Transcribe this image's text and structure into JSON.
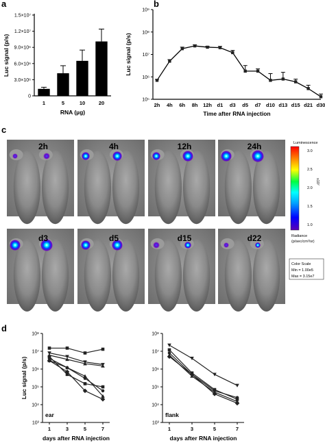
{
  "chart_data": [
    {
      "panel": "a",
      "type": "bar",
      "categories": [
        "1",
        "5",
        "10",
        "20"
      ],
      "values": [
        1300000,
        4200000,
        6500000,
        10100000
      ],
      "errors": [
        300000,
        1400000,
        2000000,
        2300000
      ],
      "ylabel": "Luc signal (p/s)",
      "xlabel": "RNA (µg)",
      "ylim": [
        0,
        15000000
      ],
      "yticks": [
        "0",
        "3.0×10⁶",
        "6.0×10⁶",
        "9.0×10⁶",
        "1.2×10⁷",
        "1.5×10⁷"
      ]
    },
    {
      "panel": "b",
      "type": "line",
      "yscale": "log",
      "categories": [
        "2h",
        "4h",
        "6h",
        "8h",
        "12h",
        "d1",
        "d3",
        "d5",
        "d7",
        "d10",
        "d13",
        "d15",
        "d21",
        "d30"
      ],
      "values": [
        700000,
        5000000,
        18000000,
        24000000,
        21000000,
        20000000,
        12000000,
        1800000,
        1800000,
        700000,
        800000,
        600000,
        300000,
        130000
      ],
      "errors_up": [
        0.04,
        0.07,
        0.07,
        0.05,
        0.04,
        0.06,
        0.1,
        0.25,
        0.1,
        0.3,
        0.3,
        0.12,
        0.15,
        0.12
      ],
      "ylabel": "Luc signal (p/s)",
      "xlabel": "Time after RNA injection",
      "ylim": [
        100000,
        1000000000
      ],
      "yticks": [
        "10⁵",
        "10⁶",
        "10⁷",
        "10⁸",
        "10⁹"
      ]
    },
    {
      "panel": "d-ear",
      "type": "line",
      "yscale": "log",
      "x": [
        1,
        3,
        5,
        7
      ],
      "series": [
        {
          "marker": "square",
          "values": [
            15000000,
            15000000,
            8000000,
            13000000
          ]
        },
        {
          "marker": "triangle-down",
          "values": [
            8000000,
            5000000,
            2500000,
            1800000
          ]
        },
        {
          "marker": "triangle-up",
          "values": [
            6000000,
            3500000,
            2000000,
            1500000
          ]
        },
        {
          "marker": "circle",
          "values": [
            4000000,
            1200000,
            300000,
            60000
          ]
        },
        {
          "marker": "triangle-up",
          "values": [
            3000000,
            1200000,
            400000,
            30000
          ]
        },
        {
          "marker": "diamond",
          "values": [
            3000000,
            700000,
            60000,
            20000
          ]
        },
        {
          "marker": "square",
          "values": [
            5000000,
            500000,
            150000,
            100000
          ]
        }
      ],
      "label": "ear",
      "ylabel": "Luc signal (p/s)",
      "xlabel": "days after RNA injection",
      "ylim": [
        1000,
        100000000
      ],
      "yticks": [
        "10³",
        "10⁴",
        "10⁵",
        "10⁶",
        "10⁷",
        "10⁸"
      ]
    },
    {
      "panel": "d-flank",
      "type": "line",
      "yscale": "log",
      "x": [
        1,
        3,
        5,
        7
      ],
      "series": [
        {
          "marker": "triangle-down",
          "values": [
            22000000,
            4000000,
            500000,
            120000
          ]
        },
        {
          "marker": "square",
          "values": [
            12000000,
            600000,
            70000,
            20000
          ]
        },
        {
          "marker": "circle",
          "values": [
            8000000,
            500000,
            60000,
            25000
          ]
        },
        {
          "marker": "triangle-up",
          "values": [
            6000000,
            400000,
            50000,
            15000
          ]
        },
        {
          "marker": "diamond",
          "values": [
            5000000,
            500000,
            40000,
            12000
          ]
        }
      ],
      "label": "flank",
      "ylabel": "",
      "xlabel": "days after RNA injection",
      "ylim": [
        1000,
        100000000
      ],
      "yticks": [
        "10³",
        "10⁴",
        "10⁵",
        "10⁶",
        "10⁷",
        "10⁸"
      ]
    }
  ],
  "panels": {
    "a": "a",
    "b": "b",
    "c": "c",
    "d": "d"
  },
  "imaging": {
    "row1": [
      "2h",
      "4h",
      "12h",
      "24h"
    ],
    "row2": [
      "d3",
      "d5",
      "d15",
      "d22"
    ],
    "colorbar": {
      "title": "Luminescence",
      "ticks": [
        "3.0",
        "2.5",
        "2.0",
        "1.5",
        "1.0"
      ],
      "exponent": "x10⁷",
      "units_line1": "Radiance",
      "units_line2": "(p/sec/cm²/sr)",
      "scale_title": "Color Scale",
      "scale_min": "Min = 1.00e5",
      "scale_max": "Max = 3.15e7"
    }
  }
}
